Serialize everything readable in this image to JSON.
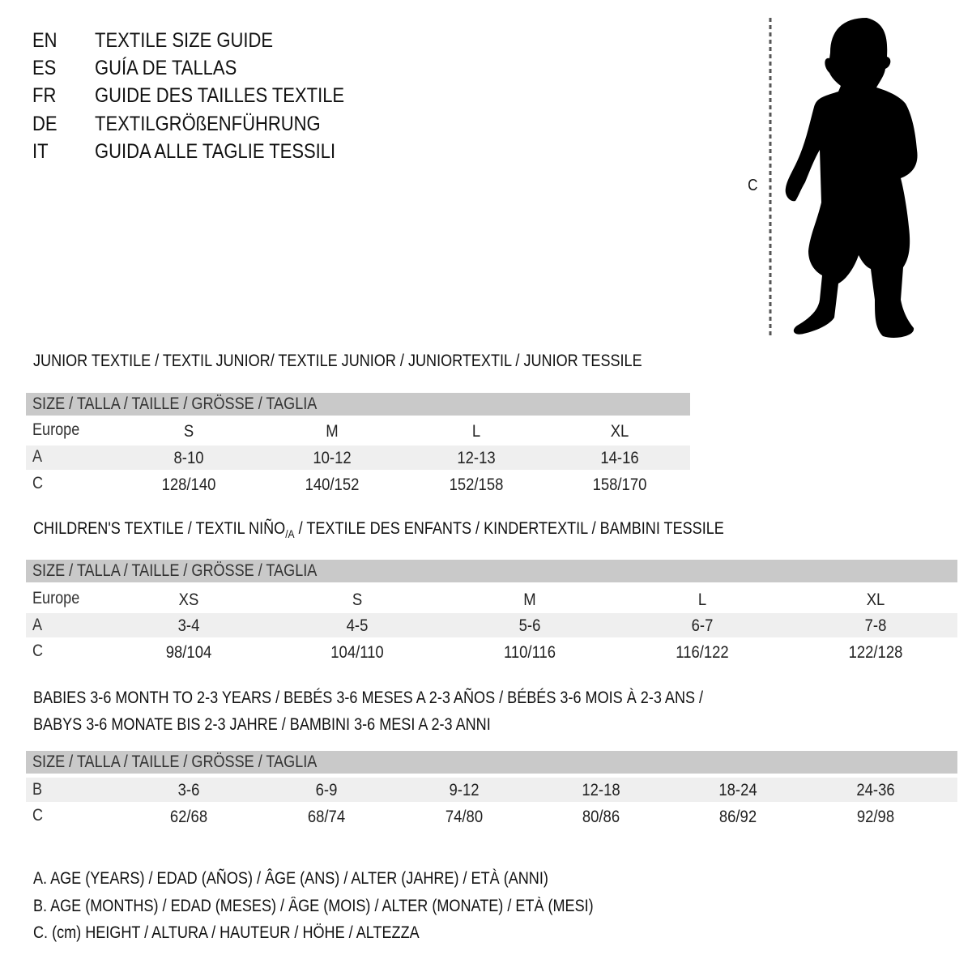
{
  "header": [
    {
      "lang": "EN",
      "text": "TEXTILE SIZE GUIDE"
    },
    {
      "lang": "ES",
      "text": "GUÍA DE TALLAS"
    },
    {
      "lang": "FR",
      "text": "GUIDE DES TAILLES TEXTILE"
    },
    {
      "lang": "DE",
      "text": "TEXTILGRÖßENFÜHRUNG"
    },
    {
      "lang": "IT",
      "text": "GUIDA ALLE TAGLIE TESSILI"
    }
  ],
  "figure": {
    "measure_label": "C"
  },
  "size_header": "SIZE / TALLA / TAILLE / GRÖSSE / TAGLIA",
  "junior": {
    "title": "JUNIOR TEXTILE / TEXTIL JUNIOR/ TEXTILE JUNIOR / JUNIORTEXTIL / JUNIOR TESSILE",
    "rows": [
      {
        "label": "Europe",
        "cells": [
          "S",
          "M",
          "L",
          "XL"
        ]
      },
      {
        "label": "A",
        "cells": [
          "8-10",
          "10-12",
          "12-13",
          "14-16"
        ]
      },
      {
        "label": "C",
        "cells": [
          "128/140",
          "140/152",
          "152/158",
          "158/170"
        ]
      }
    ]
  },
  "children": {
    "title_pre": "CHILDREN'S TEXTILE / TEXTIL NIÑO",
    "title_sub": "/A",
    "title_post": " / TEXTILE DES ENFANTS / KINDERTEXTIL / BAMBINI TESSILE",
    "rows": [
      {
        "label": "Europe",
        "cells": [
          "XS",
          "S",
          "M",
          "L",
          "XL"
        ]
      },
      {
        "label": "A",
        "cells": [
          "3-4",
          "4-5",
          "5-6",
          "6-7",
          "7-8"
        ]
      },
      {
        "label": "C",
        "cells": [
          "98/104",
          "104/110",
          "110/116",
          "116/122",
          "122/128"
        ]
      }
    ]
  },
  "babies": {
    "title_line1": "BABIES 3-6 MONTH TO 2-3 YEARS / BEBÉS 3-6 MESES A 2-3 AÑOS / BÉBÉS 3-6 MOIS À 2-3 ANS /",
    "title_line2": "BABYS 3-6 MONATE BIS 2-3 JAHRE / BAMBINI 3-6 MESI A 2-3 ANNI",
    "rows": [
      {
        "label": "B",
        "cells": [
          "3-6",
          "6-9",
          "9-12",
          "12-18",
          "18-24",
          "24-36"
        ]
      },
      {
        "label": "C",
        "cells": [
          "62/68",
          "68/74",
          "74/80",
          "80/86",
          "86/92",
          "92/98"
        ]
      }
    ]
  },
  "legend": [
    "A. AGE (YEARS) / EDAD (AÑOS) / ÂGE (ANS) / ALTER (JAHRE) / ETÀ (ANNI)",
    "B. AGE (MONTHS) / EDAD (MESES) / ÂGE (MOIS) / ALTER (MONATE) / ETÀ (MESI)",
    "C. (cm) HEIGHT / ALTURA / HAUTEUR / HÖHE / ALTEZZA"
  ]
}
